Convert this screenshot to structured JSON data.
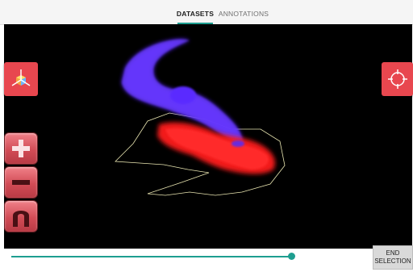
{
  "tabs": [
    {
      "label": "DATASETS",
      "active": true
    },
    {
      "label": "ANNOTATIONS",
      "active": false
    }
  ],
  "toolbar_left": {
    "axes_button_icon": "3d-axes-icon",
    "zoom_in_icon": "plus-icon",
    "zoom_out_icon": "minus-icon",
    "magnet_icon": "magnet-icon"
  },
  "toolbar_right": {
    "target_button_icon": "crosshair-icon"
  },
  "slider": {
    "value": 0.99
  },
  "end_selection": {
    "line1": "END",
    "line2": "SELECTION"
  },
  "colors": {
    "accent": "#1e9e90",
    "button_red": "#e8474f",
    "cloud_blue": "#5b2bff",
    "cloud_red": "#ff1a1a",
    "selection_outline": "#e8e4b0"
  }
}
